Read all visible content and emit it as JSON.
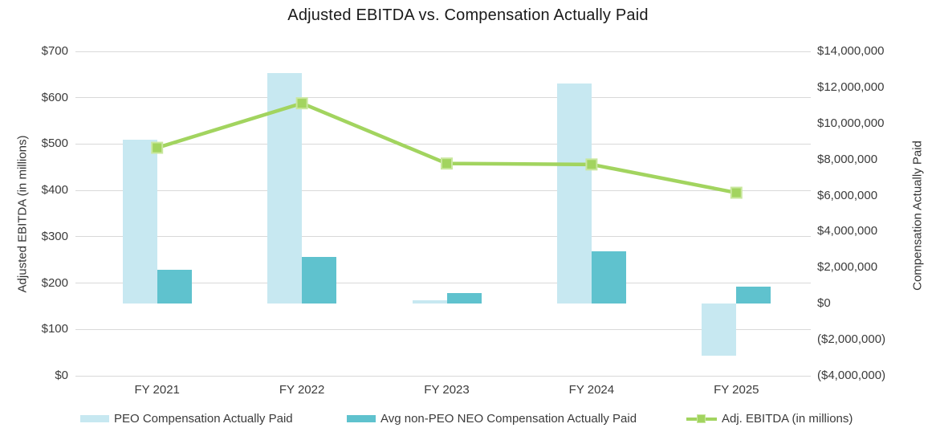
{
  "chart_data": {
    "type": "bar",
    "subtype": "bar-line-combo",
    "title": "Adjusted EBITDA vs. Compensation Actually Paid",
    "categories": [
      "FY 2021",
      "FY 2022",
      "FY 2023",
      "FY 2024",
      "FY 2025"
    ],
    "bar_series": [
      {
        "name": "PEO Compensation Actually Paid",
        "axis": "right",
        "color": "#c7e8f1",
        "values": [
          9100000,
          12800000,
          200000,
          12200000,
          -2900000
        ]
      },
      {
        "name": "Avg non-PEO NEO Compensation Actually Paid",
        "axis": "right",
        "color": "#5fc2ce",
        "values": [
          1900000,
          2600000,
          600000,
          2900000,
          950000
        ]
      }
    ],
    "line_series": [
      {
        "name": "Adj. EBITDA (in millions)",
        "axis": "left",
        "color": "#a2d45f",
        "marker_fill": "#a2d45f",
        "marker_border": "#c9e79e",
        "marker": "square",
        "values": [
          492,
          588,
          458,
          456,
          395
        ]
      }
    ],
    "left_axis": {
      "title": "Adjusted EBITDA (in millions)",
      "min": 0,
      "max": 700,
      "step": 100,
      "tick_labels": [
        "$700",
        "$600",
        "$500",
        "$400",
        "$300",
        "$200",
        "$100",
        "$0"
      ]
    },
    "right_axis": {
      "title": "Compensation Actually Paid",
      "min": -4000000,
      "max": 14000000,
      "step": 2000000,
      "tick_labels": [
        "$14,000,000",
        "$12,000,000",
        "$10,000,000",
        "$8,000,000",
        "$6,000,000",
        "$4,000,000",
        "$2,000,000",
        "$0",
        "($2,000,000)",
        "($4,000,000)"
      ]
    },
    "grid": true,
    "gridline_color": "#d9d9d9",
    "legend_position": "bottom"
  }
}
